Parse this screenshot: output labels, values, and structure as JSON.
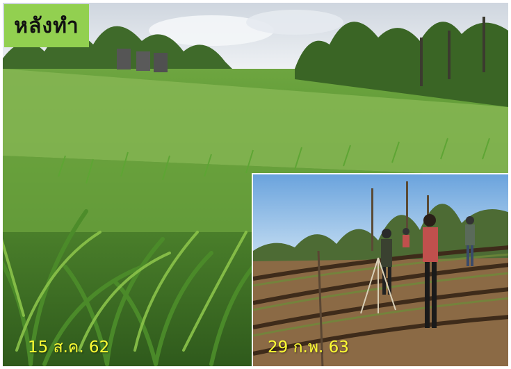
{
  "title": "หลังทำ",
  "photos": {
    "main": {
      "date_label": "15 ส.ค. 62",
      "subject": "maize field"
    },
    "inset": {
      "date_label": "29 ก.พ. 63",
      "subject": "terraced field with people"
    }
  },
  "colors": {
    "title_bg": "#92d050",
    "date_text": "#ffff33"
  }
}
